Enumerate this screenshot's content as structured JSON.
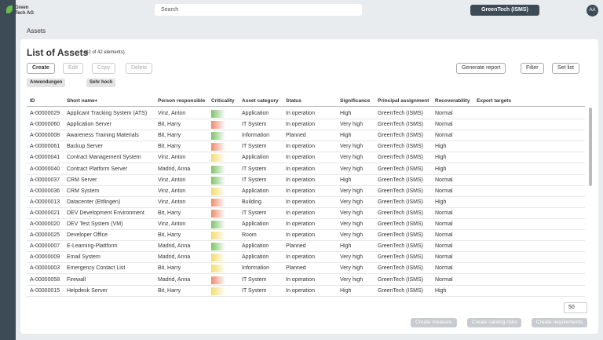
{
  "header": {
    "logo": "Green Tech AG",
    "search": "Search",
    "tenant": "GreenTech (ISMS)",
    "avatar": "AA"
  },
  "breadcrumb": "Assets",
  "title": "List of Assets",
  "count": "(42 of 42 elements)",
  "toolbar": {
    "create": "Create",
    "edit": "Edit",
    "copy": "Copy",
    "delete": "Delete",
    "report": "Generate report",
    "filter": "Filter",
    "setlist": "Set list"
  },
  "filters": [
    "Anwendungen",
    "Sehr hoch"
  ],
  "table": {
    "columns": [
      "ID",
      "Short name",
      "Person responsible",
      "Criticality",
      "Asset category",
      "Status",
      "Significance",
      "Principal assignment",
      "Recoverability",
      "Export targets"
    ],
    "rows": [
      [
        "A-00000029",
        "Applicant Tracking System (ATS)",
        "Vinz, Anton",
        "#7dc36b",
        "Application",
        "In operation",
        "High",
        "GreenTech (ISMS)",
        "Normal"
      ],
      [
        "A-00000060",
        "Application Server",
        "Bit, Harry",
        "#f08a6e",
        "IT System",
        "In operation",
        "Very high",
        "GreenTech (ISMS)",
        "Normal"
      ],
      [
        "A-00000008",
        "Awareness Training Materials",
        "Bit, Harry",
        "#7dc36b",
        "Information",
        "Planned",
        "High",
        "GreenTech (ISMS)",
        "Normal"
      ],
      [
        "A-00000061",
        "Backup Server",
        "Bit, Harry",
        "#f08a6e",
        "IT System",
        "In operation",
        "Very high",
        "GreenTech (ISMS)",
        "High"
      ],
      [
        "A-00000041",
        "Contract Management System",
        "Vinz, Anton",
        "#f3dc6b",
        "Application",
        "In operation",
        "Very high",
        "GreenTech (ISMS)",
        "High"
      ],
      [
        "A-00000040",
        "Contract Platform Server",
        "Madrid, Anna",
        "#7dc36b",
        "IT System",
        "In operation",
        "Very high",
        "GreenTech (ISMS)",
        "High"
      ],
      [
        "A-00000037",
        "CRM Server",
        "Vinz, Anton",
        "#7dc36b",
        "IT System",
        "In operation",
        "High",
        "GreenTech (ISMS)",
        "Normal"
      ],
      [
        "A-00000036",
        "CRM System",
        "Vinz, Anton",
        "#f3dc6b",
        "Application",
        "In operation",
        "Very high",
        "GreenTech (ISMS)",
        "Normal"
      ],
      [
        "A-00000013",
        "Datacenter (Ettlingen)",
        "Vinz, Anton",
        "#f08a6e",
        "Building",
        "In operation",
        "Very high",
        "GreenTech (ISMS)",
        "High"
      ],
      [
        "A-00000021",
        "DEV Development Environment",
        "Bit, Harry",
        "#f08a6e",
        "IT System",
        "In operation",
        "Very high",
        "GreenTech (ISMS)",
        "Normal"
      ],
      [
        "A-00000020",
        "DEV Test System (VM)",
        "Vinz, Anton",
        "#7dc36b",
        "Application",
        "In operation",
        "Very high",
        "GreenTech (ISMS)",
        "Normal"
      ],
      [
        "A-00000025",
        "Developer Office",
        "Bit, Harry",
        "#f3dc6b",
        "Room",
        "In operation",
        "Very high",
        "GreenTech (ISMS)",
        "Normal"
      ],
      [
        "A-00000007",
        "E-Learning-Plattform",
        "Madrid, Anna",
        "#7dc36b",
        "Application",
        "Planned",
        "High",
        "GreenTech (ISMS)",
        "Normal"
      ],
      [
        "A-00000009",
        "Email System",
        "Madrid, Anna",
        "#f3dc6b",
        "Application",
        "In operation",
        "Very high",
        "GreenTech (ISMS)",
        "Normal"
      ],
      [
        "A-00000003",
        "Emergency Contact List",
        "Bit, Harry",
        "#f3dc6b",
        "Information",
        "Planned",
        "Very high",
        "GreenTech (ISMS)",
        "Normal"
      ],
      [
        "A-00000058",
        "Firewall",
        "Madrid, Anna",
        "#f08a6e",
        "IT System",
        "In operation",
        "Very high",
        "GreenTech (ISMS)",
        "Normal"
      ],
      [
        "A-00000015",
        "Helpdesk Server",
        "Bit, Harry",
        "#f3dc6b",
        "IT System",
        "In operation",
        "High",
        "GreenTech (ISMS)",
        "High"
      ]
    ]
  },
  "pagesize": "50",
  "footer": [
    "Create measure",
    "Create catalog risks",
    "Create requirements"
  ]
}
